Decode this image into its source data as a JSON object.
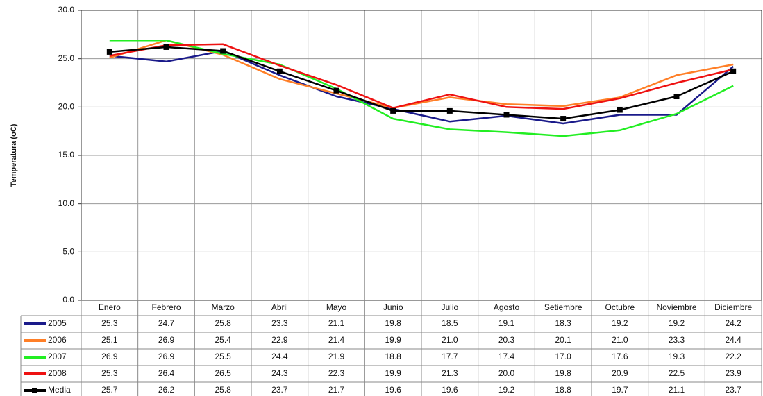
{
  "chart_data": {
    "type": "line",
    "y_label": "Temperatura (oC)",
    "categories": [
      "Enero",
      "Febrero",
      "Marzo",
      "Abril",
      "Mayo",
      "Junio",
      "Julio",
      "Agosto",
      "Setiembre",
      "Octubre",
      "Noviembre",
      "Diciembre"
    ],
    "ylim": [
      0,
      30
    ],
    "yticks": [
      {
        "value": 0,
        "label": "0.0"
      },
      {
        "value": 5,
        "label": "5.0"
      },
      {
        "value": 10,
        "label": "10.0"
      },
      {
        "value": 15,
        "label": "15.0"
      },
      {
        "value": 20,
        "label": "20.0"
      },
      {
        "value": 25,
        "label": "25.0"
      },
      {
        "value": 30,
        "label": "30.0"
      }
    ],
    "grid": true,
    "series": [
      {
        "name": "2005",
        "color": "#1a1a8a",
        "values": [
          25.3,
          24.7,
          25.8,
          23.3,
          21.1,
          19.8,
          18.5,
          19.1,
          18.3,
          19.2,
          19.2,
          24.2
        ],
        "value_labels": [
          "25.3",
          "24.7",
          "25.8",
          "23.3",
          "21.1",
          "19.8",
          "18.5",
          "19.1",
          "18.3",
          "19.2",
          "19.2",
          "24.2"
        ]
      },
      {
        "name": "2006",
        "color": "#ff7f27",
        "values": [
          25.1,
          26.9,
          25.4,
          22.9,
          21.4,
          19.9,
          21.0,
          20.3,
          20.1,
          21.0,
          23.3,
          24.4
        ],
        "value_labels": [
          "25.1",
          "26.9",
          "25.4",
          "22.9",
          "21.4",
          "19.9",
          "21.0",
          "20.3",
          "20.1",
          "21.0",
          "23.3",
          "24.4"
        ]
      },
      {
        "name": "2007",
        "color": "#22ee22",
        "values": [
          26.9,
          26.9,
          25.5,
          24.4,
          21.9,
          18.8,
          17.7,
          17.4,
          17.0,
          17.6,
          19.3,
          22.2
        ],
        "value_labels": [
          "26.9",
          "26.9",
          "25.5",
          "24.4",
          "21.9",
          "18.8",
          "17.7",
          "17.4",
          "17.0",
          "17.6",
          "19.3",
          "22.2"
        ]
      },
      {
        "name": "2008",
        "color": "#ee1111",
        "values": [
          25.3,
          26.4,
          26.5,
          24.3,
          22.3,
          19.9,
          21.3,
          20.0,
          19.8,
          20.9,
          22.5,
          23.9
        ],
        "value_labels": [
          "25.3",
          "26.4",
          "26.5",
          "24.3",
          "22.3",
          "19.9",
          "21.3",
          "20.0",
          "19.8",
          "20.9",
          "22.5",
          "23.9"
        ]
      },
      {
        "name": "Media",
        "color": "#000000",
        "marker": "square",
        "values": [
          25.7,
          26.2,
          25.8,
          23.7,
          21.7,
          19.6,
          19.6,
          19.2,
          18.8,
          19.7,
          21.1,
          23.7
        ],
        "value_labels": [
          "25.7",
          "26.2",
          "25.8",
          "23.7",
          "21.7",
          "19.6",
          "19.6",
          "19.2",
          "18.8",
          "19.7",
          "21.1",
          "23.7"
        ]
      }
    ]
  }
}
